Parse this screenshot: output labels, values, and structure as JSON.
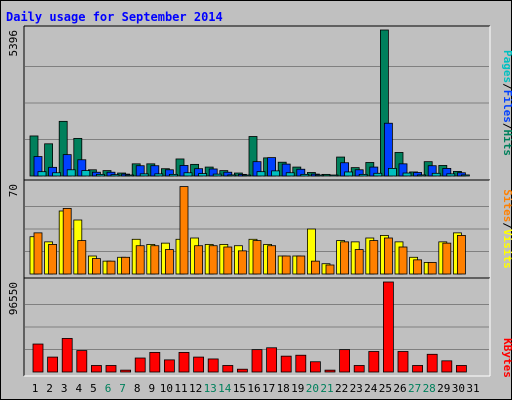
{
  "chart_data": [
    {
      "type": "bar",
      "title": "Daily usage for September 2014",
      "ymax_label": "5396",
      "ylim": [
        0,
        5396
      ],
      "legend": [
        "Pages",
        "Files",
        "Hits"
      ],
      "x": [
        "1",
        "2",
        "3",
        "4",
        "5",
        "6",
        "7",
        "8",
        "9",
        "10",
        "11",
        "12",
        "13",
        "14",
        "15",
        "16",
        "17",
        "18",
        "19",
        "20",
        "21",
        "22",
        "23",
        "24",
        "25",
        "26",
        "27",
        "28",
        "29",
        "30",
        "31"
      ],
      "weekend_days": [
        6,
        7,
        13,
        14,
        20,
        21,
        27,
        28
      ],
      "series": [
        {
          "name": "Hits",
          "color": "#00805c",
          "values": [
            1480,
            1190,
            2020,
            1390,
            230,
            200,
            110,
            450,
            450,
            270,
            630,
            430,
            330,
            200,
            110,
            1460,
            670,
            510,
            330,
            130,
            60,
            700,
            310,
            500,
            5396,
            870,
            150,
            530,
            390,
            170,
            0
          ]
        },
        {
          "name": "Files",
          "color": "#0040ff",
          "values": [
            720,
            320,
            790,
            600,
            140,
            140,
            70,
            380,
            380,
            230,
            390,
            270,
            260,
            140,
            60,
            530,
            680,
            440,
            250,
            70,
            0,
            490,
            230,
            330,
            1950,
            450,
            130,
            380,
            280,
            120,
            0
          ]
        },
        {
          "name": "Pages",
          "color": "#00c0c0",
          "values": [
            160,
            120,
            230,
            200,
            60,
            50,
            30,
            80,
            80,
            60,
            120,
            90,
            70,
            40,
            20,
            160,
            190,
            120,
            60,
            20,
            10,
            150,
            60,
            100,
            280,
            110,
            40,
            100,
            80,
            40,
            0
          ]
        }
      ]
    },
    {
      "type": "bar",
      "ymax_label": "70",
      "ylim": [
        0,
        70
      ],
      "legend": [
        "Sites",
        "Visits"
      ],
      "series": [
        {
          "name": "Visits",
          "color": "#ffff00",
          "values": [
            29,
            25,
            49,
            42,
            14,
            10,
            13,
            27,
            23,
            24,
            27,
            28,
            23,
            23,
            22,
            27,
            23,
            14,
            14,
            35,
            8,
            26,
            25,
            28,
            30,
            25,
            13,
            9,
            25,
            32,
            0
          ]
        },
        {
          "name": "Sites",
          "color": "#ff8000",
          "values": [
            32,
            23,
            51,
            26,
            12,
            10,
            13,
            22,
            22,
            19,
            68,
            22,
            22,
            21,
            18,
            26,
            22,
            14,
            14,
            10,
            7,
            25,
            19,
            26,
            28,
            21,
            11,
            9,
            24,
            30,
            0
          ]
        }
      ]
    },
    {
      "type": "bar",
      "ymax_label": "96550",
      "ylim": [
        0,
        96550
      ],
      "legend": [
        "KBytes"
      ],
      "series": [
        {
          "name": "KBytes",
          "color": "#ff0000",
          "values": [
            30000,
            16000,
            36000,
            23000,
            7000,
            7000,
            2000,
            15000,
            21000,
            13000,
            21000,
            16000,
            14000,
            7000,
            3000,
            24000,
            26000,
            17000,
            18000,
            11000,
            2000,
            24000,
            7000,
            22000,
            96550,
            22000,
            7000,
            19000,
            12000,
            7000,
            0
          ]
        }
      ]
    }
  ]
}
